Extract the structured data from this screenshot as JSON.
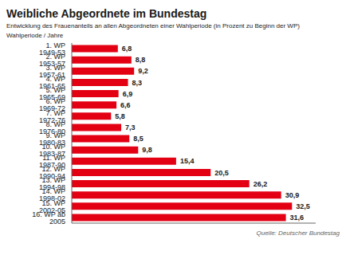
{
  "chart_data": {
    "type": "bar",
    "orientation": "horizontal",
    "title": "Weibliche Abgeordnete im Bundestag",
    "subtitle": "Entwicklung des Frauenanteils an allen Abgeordneten einer Wahlperiode (in Prozent zu Beginn der WP)",
    "ylabel": "Wahlperiode / Jahre",
    "annotations": [
      "Quelle: Deutscher Bundestag"
    ],
    "categories": [
      "1. WP 1949-53",
      "2. WP 1953-57",
      "3. WP 1957-61",
      "4. WP 1961-65",
      "5. WP 1965-69",
      "6. WP 1969-72",
      "7. WP 1972-76",
      "8. WP 1976-80",
      "9. WP 1980-83",
      "10. WP 1983-87",
      "11. WP 1987-90",
      "12. WP 1990-94",
      "13. WP 1994-98",
      "14. WP 1998-02",
      "15. WP 2002-05",
      "16. WP ab 2005"
    ],
    "values": [
      6.8,
      8.8,
      9.2,
      8.3,
      6.9,
      6.6,
      5.8,
      7.3,
      8.5,
      9.8,
      15.4,
      20.5,
      26.2,
      30.9,
      32.5,
      31.6
    ],
    "value_labels": [
      "6,8",
      "8,8",
      "9,2",
      "8,3",
      "6,9",
      "6,6",
      "5,8",
      "7,3",
      "8,5",
      "9,8",
      "15,4",
      "20,5",
      "26,2",
      "30,9",
      "32,5",
      "31,6"
    ],
    "color": "#e30013",
    "xlim": [
      0,
      36
    ],
    "data_labels": true,
    "tick_labels": "y",
    "grid": false
  }
}
